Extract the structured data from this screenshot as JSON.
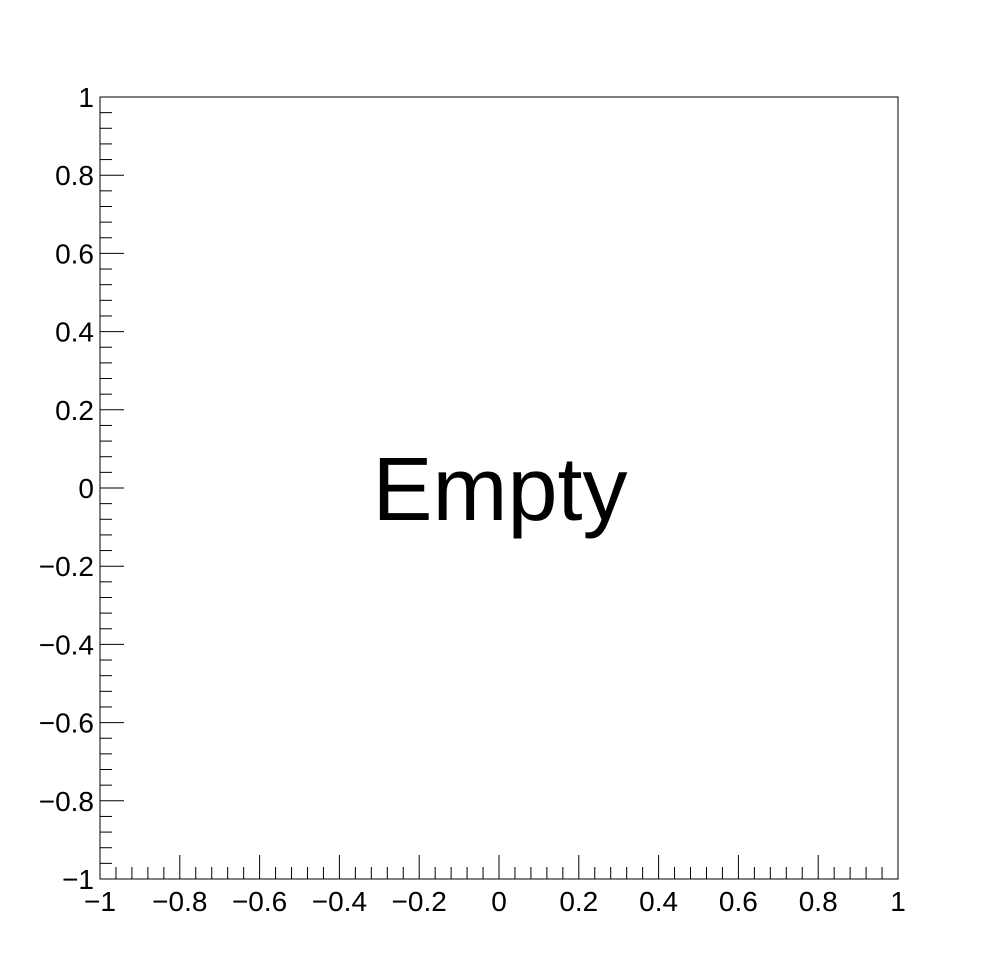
{
  "chart_data": {
    "type": "scatter",
    "title": "",
    "xlabel": "",
    "ylabel": "",
    "xlim": [
      -1,
      1
    ],
    "ylim": [
      -1,
      1
    ],
    "x_ticks": [
      "−1",
      "−0.8",
      "−0.6",
      "−0.4",
      "−0.2",
      "0",
      "0.2",
      "0.4",
      "0.6",
      "0.8",
      "1"
    ],
    "y_ticks": [
      "−1",
      "−0.8",
      "−0.6",
      "−0.4",
      "−0.2",
      "0",
      "0.2",
      "0.4",
      "0.6",
      "0.8",
      "1"
    ],
    "x_tick_values": [
      -1,
      -0.8,
      -0.6,
      -0.4,
      -0.2,
      0,
      0.2,
      0.4,
      0.6,
      0.8,
      1
    ],
    "y_tick_values": [
      -1,
      -0.8,
      -0.6,
      -0.4,
      -0.2,
      0,
      0.2,
      0.4,
      0.6,
      0.8,
      1
    ],
    "minor_ticks_per_major": 4,
    "grid": false,
    "series": [],
    "annotation": "Empty"
  }
}
